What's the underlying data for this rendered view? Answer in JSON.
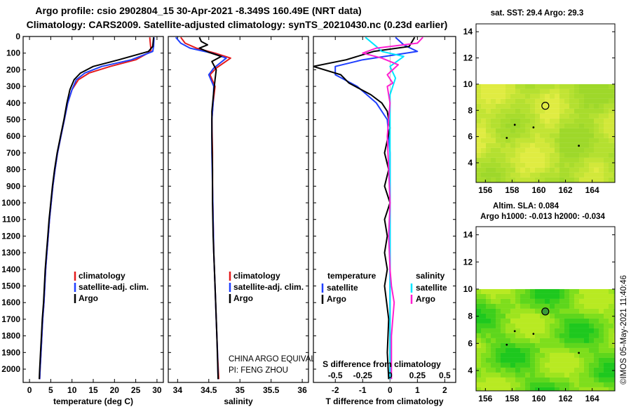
{
  "titles": {
    "line1": "Argo profile: csio 2902804_15 30-Apr-2021 -8.349S 160.49E (NRT data)",
    "line2": "Climatology: CARS2009. Satellite-adjusted climatology: synTS_20210430.nc (0.23d earlier)"
  },
  "watermark": "©IMOS 05-May-2021 11:40:46",
  "colors": {
    "climatology": "#e41a1c",
    "satellite": "#1f3fff",
    "argo": "#000000",
    "satellite_salinity": "#00e5ff",
    "argo_salinity": "#ff1fd0",
    "map_nodata": "#ffffff"
  },
  "chart_data": [
    {
      "id": "temperature-profile",
      "type": "line",
      "xlabel": "temperature (deg C)",
      "ylabel": "",
      "xlim": [
        -1.5,
        31.5
      ],
      "ylim": [
        2080,
        0
      ],
      "xticks": [
        0,
        5,
        10,
        15,
        20,
        25,
        30
      ],
      "yticks": [
        0,
        100,
        200,
        300,
        400,
        500,
        600,
        700,
        800,
        900,
        1000,
        1100,
        1200,
        1300,
        1400,
        1500,
        1600,
        1700,
        1800,
        1900,
        2000
      ],
      "legend": [
        "climatology",
        "satellite-adj. clim.",
        "Argo"
      ],
      "series": [
        {
          "name": "climatology",
          "color_key": "climatology",
          "points": [
            [
              28.3,
              5
            ],
            [
              28.5,
              60
            ],
            [
              28.6,
              90
            ],
            [
              25,
              140
            ],
            [
              19,
              180
            ],
            [
              14,
              220
            ],
            [
              11.5,
              260
            ],
            [
              10,
              320
            ],
            [
              9,
              400
            ],
            [
              8.2,
              500
            ],
            [
              7.4,
              600
            ],
            [
              6.6,
              700
            ],
            [
              6,
              800
            ],
            [
              5.5,
              900
            ],
            [
              5.1,
              1000
            ],
            [
              4.7,
              1100
            ],
            [
              4.4,
              1200
            ],
            [
              4.1,
              1300
            ],
            [
              3.8,
              1400
            ],
            [
              3.6,
              1500
            ],
            [
              3.4,
              1600
            ],
            [
              3.1,
              1700
            ],
            [
              2.9,
              1800
            ],
            [
              2.7,
              1900
            ],
            [
              2.5,
              2000
            ],
            [
              2.4,
              2060
            ]
          ]
        },
        {
          "name": "satellite-adj. clim.",
          "color_key": "satellite",
          "points": [
            [
              29.3,
              5
            ],
            [
              29.2,
              60
            ],
            [
              29,
              90
            ],
            [
              24,
              140
            ],
            [
              17,
              180
            ],
            [
              13,
              220
            ],
            [
              11,
              260
            ],
            [
              10,
              320
            ],
            [
              9,
              400
            ],
            [
              8.2,
              500
            ],
            [
              7.4,
              600
            ],
            [
              6.6,
              700
            ],
            [
              6,
              800
            ],
            [
              5.5,
              900
            ],
            [
              5.1,
              1000
            ],
            [
              4.7,
              1100
            ],
            [
              4.4,
              1200
            ],
            [
              4.1,
              1300
            ],
            [
              3.8,
              1400
            ],
            [
              3.6,
              1500
            ],
            [
              3.4,
              1600
            ],
            [
              3.1,
              1700
            ],
            [
              2.9,
              1800
            ],
            [
              2.7,
              1900
            ],
            [
              2.5,
              2000
            ],
            [
              2.4,
              2060
            ]
          ]
        },
        {
          "name": "Argo",
          "color_key": "argo",
          "points": [
            [
              29.2,
              5
            ],
            [
              29,
              60
            ],
            [
              28,
              90
            ],
            [
              21,
              140
            ],
            [
              15,
              180
            ],
            [
              12,
              220
            ],
            [
              10.5,
              260
            ],
            [
              9.5,
              320
            ],
            [
              8.8,
              400
            ],
            [
              8.1,
              500
            ],
            [
              7.3,
              600
            ],
            [
              6.5,
              700
            ],
            [
              5.9,
              800
            ],
            [
              5.4,
              900
            ],
            [
              5,
              1000
            ],
            [
              4.6,
              1100
            ],
            [
              4.3,
              1200
            ],
            [
              4,
              1300
            ],
            [
              3.7,
              1400
            ],
            [
              3.5,
              1500
            ],
            [
              3.3,
              1600
            ],
            [
              3,
              1700
            ],
            [
              2.8,
              1800
            ],
            [
              2.6,
              1900
            ],
            [
              2.4,
              2000
            ],
            [
              2.3,
              2060
            ]
          ]
        }
      ]
    },
    {
      "id": "salinity-profile",
      "type": "line",
      "xlabel": "salinity",
      "ylabel": "",
      "xlim": [
        33.85,
        36.1
      ],
      "ylim": [
        2080,
        0
      ],
      "xticks": [
        34,
        34.5,
        35,
        35.5,
        36
      ],
      "legend": [
        "climatology",
        "satellite-adj. clim.",
        "Argo"
      ],
      "series": [
        {
          "name": "climatology",
          "color_key": "climatology",
          "points": [
            [
              34.05,
              5
            ],
            [
              34.12,
              40
            ],
            [
              34.3,
              70
            ],
            [
              34.6,
              100
            ],
            [
              34.85,
              130
            ],
            [
              34.62,
              190
            ],
            [
              34.52,
              230
            ],
            [
              34.6,
              300
            ],
            [
              34.57,
              400
            ],
            [
              34.55,
              500
            ],
            [
              34.56,
              700
            ],
            [
              34.56,
              900
            ],
            [
              34.57,
              1100
            ],
            [
              34.58,
              1300
            ],
            [
              34.6,
              1500
            ],
            [
              34.62,
              1700
            ],
            [
              34.64,
              1900
            ],
            [
              34.66,
              2060
            ]
          ]
        },
        {
          "name": "satellite-adj. clim.",
          "color_key": "satellite",
          "points": [
            [
              33.97,
              5
            ],
            [
              34.05,
              40
            ],
            [
              34.2,
              70
            ],
            [
              34.55,
              100
            ],
            [
              34.78,
              130
            ],
            [
              34.58,
              190
            ],
            [
              34.5,
              230
            ],
            [
              34.58,
              300
            ],
            [
              34.57,
              400
            ],
            [
              34.55,
              500
            ],
            [
              34.55,
              700
            ],
            [
              34.56,
              900
            ],
            [
              34.57,
              1100
            ],
            [
              34.58,
              1300
            ],
            [
              34.6,
              1500
            ],
            [
              34.62,
              1700
            ],
            [
              34.64,
              1900
            ],
            [
              34.65,
              2060
            ]
          ]
        },
        {
          "name": "Argo",
          "color_key": "argo",
          "points": [
            [
              34.35,
              5
            ],
            [
              34.38,
              30
            ],
            [
              34.48,
              50
            ],
            [
              34.35,
              70
            ],
            [
              34.5,
              95
            ],
            [
              34.7,
              120
            ],
            [
              34.55,
              150
            ],
            [
              34.62,
              200
            ],
            [
              34.6,
              260
            ],
            [
              34.58,
              330
            ],
            [
              34.55,
              450
            ],
            [
              34.55,
              600
            ],
            [
              34.56,
              800
            ],
            [
              34.56,
              1000
            ],
            [
              34.57,
              1200
            ],
            [
              34.59,
              1400
            ],
            [
              34.61,
              1600
            ],
            [
              34.63,
              1800
            ],
            [
              34.65,
              2060
            ]
          ]
        }
      ],
      "annotations": [
        "CHINA ARGO EQUIVALENT",
        "PI: FENG ZHOU"
      ]
    },
    {
      "id": "difference-profile",
      "type": "line",
      "xlabel": "T difference from climatology",
      "xlabel_top": "S difference from climatology",
      "xlim": [
        -2.8,
        2.4
      ],
      "ylim": [
        2080,
        0
      ],
      "xticks": [
        -2,
        -1,
        0,
        1,
        2
      ],
      "xticks_top": [
        {
          "label": "-0.5",
          "value": -2
        },
        {
          "label": "-0.25",
          "value": -1
        },
        {
          "label": "0",
          "value": 0
        },
        {
          "label": "0.25",
          "value": 1
        },
        {
          "label": "0.5",
          "value": 2
        }
      ],
      "legend_left_title": "temperature",
      "legend_right_title": "salinity",
      "legend": [
        "satellite",
        "Argo",
        "satellite",
        "Argo"
      ],
      "series": [
        {
          "name": "T satellite",
          "color_key": "satellite",
          "points": [
            [
              0.2,
              5
            ],
            [
              0.5,
              50
            ],
            [
              1,
              90
            ],
            [
              -1,
              140
            ],
            [
              -2,
              180
            ],
            [
              -2,
              230
            ],
            [
              -1.2,
              300
            ],
            [
              -0.5,
              400
            ],
            [
              -0.1,
              500
            ],
            [
              0,
              700
            ],
            [
              0,
              1000
            ],
            [
              0,
              1400
            ],
            [
              0,
              2060
            ]
          ]
        },
        {
          "name": "T Argo",
          "color_key": "argo",
          "points": [
            [
              0.9,
              5
            ],
            [
              0.7,
              60
            ],
            [
              -0.6,
              90
            ],
            [
              -1.6,
              140
            ],
            [
              -2.8,
              180
            ],
            [
              -1.8,
              230
            ],
            [
              -1.5,
              280
            ],
            [
              -0.7,
              350
            ],
            [
              -0.3,
              400
            ],
            [
              -0.1,
              450
            ],
            [
              0,
              550
            ],
            [
              -0.2,
              700
            ],
            [
              -0.05,
              800
            ],
            [
              -0.2,
              900
            ],
            [
              0,
              1000
            ],
            [
              -0.2,
              1100
            ],
            [
              -0.1,
              1200
            ],
            [
              -0.2,
              1300
            ],
            [
              -0.1,
              1400
            ],
            [
              -0.2,
              1500
            ],
            [
              -0.05,
              1700
            ],
            [
              -0.1,
              1900
            ],
            [
              -0.05,
              2060
            ]
          ]
        },
        {
          "name": "S satellite",
          "color_key": "satellite_salinity",
          "points": [
            [
              -0.9,
              5
            ],
            [
              -0.5,
              60
            ],
            [
              -0.3,
              90
            ],
            [
              0.5,
              120
            ],
            [
              0,
              180
            ],
            [
              0.2,
              250
            ],
            [
              0,
              350
            ],
            [
              0,
              500
            ],
            [
              0,
              2060
            ]
          ]
        },
        {
          "name": "S Argo",
          "color_key": "argo_salinity",
          "points": [
            [
              1.2,
              5
            ],
            [
              1,
              40
            ],
            [
              -0.5,
              70
            ],
            [
              -1,
              100
            ],
            [
              -0.3,
              130
            ],
            [
              0.3,
              170
            ],
            [
              -0.1,
              230
            ],
            [
              0.1,
              280
            ],
            [
              -0.1,
              300
            ],
            [
              0,
              400
            ],
            [
              -0.1,
              600
            ],
            [
              -0.05,
              800
            ],
            [
              0,
              1000
            ],
            [
              -0.05,
              1200
            ],
            [
              0,
              1400
            ],
            [
              0.05,
              1500
            ],
            [
              0.15,
              1600
            ],
            [
              0.1,
              1700
            ],
            [
              0.05,
              1800
            ],
            [
              0.05,
              2060
            ]
          ]
        }
      ]
    },
    {
      "id": "sst-map",
      "type": "heatmap",
      "title": "sat. SST: 29.4  Argo: 29.3",
      "xlim": [
        155.3,
        165.7
      ],
      "ylim": [
        2.5,
        14.6
      ],
      "xticks": [
        156,
        158,
        160,
        162,
        164
      ],
      "yticks": [
        4,
        6,
        8,
        10,
        12,
        14
      ],
      "data_top_lat": 10,
      "float_position": [
        160.49,
        8.35
      ],
      "field_colors": [
        "#9ed82a",
        "#a8dc2c",
        "#b4e030",
        "#c2e434",
        "#d2e83a",
        "#e0ec42"
      ],
      "islands": [
        [
          158.2,
          6.9
        ],
        [
          163.0,
          5.3
        ],
        [
          157.6,
          5.9
        ],
        [
          159.6,
          6.7
        ]
      ]
    },
    {
      "id": "sla-map",
      "type": "heatmap",
      "title": "Altim. SLA: 0.084",
      "subtitle": "Argo h1000: -0.013 h2000: -0.034",
      "xlim": [
        155.3,
        165.7
      ],
      "ylim": [
        2.5,
        14.6
      ],
      "xticks": [
        156,
        158,
        160,
        162,
        164
      ],
      "yticks": [
        4,
        6,
        8,
        10,
        12,
        14
      ],
      "data_top_lat": 10,
      "float_position": [
        160.49,
        8.35
      ],
      "field_colors": [
        "#1ec81e",
        "#3ccf1c",
        "#5ed61c",
        "#7ede1c",
        "#9ee41e",
        "#b8ea22"
      ],
      "islands": [
        [
          158.2,
          6.9
        ],
        [
          163.0,
          5.3
        ],
        [
          157.6,
          5.9
        ],
        [
          159.6,
          6.7
        ]
      ]
    }
  ]
}
